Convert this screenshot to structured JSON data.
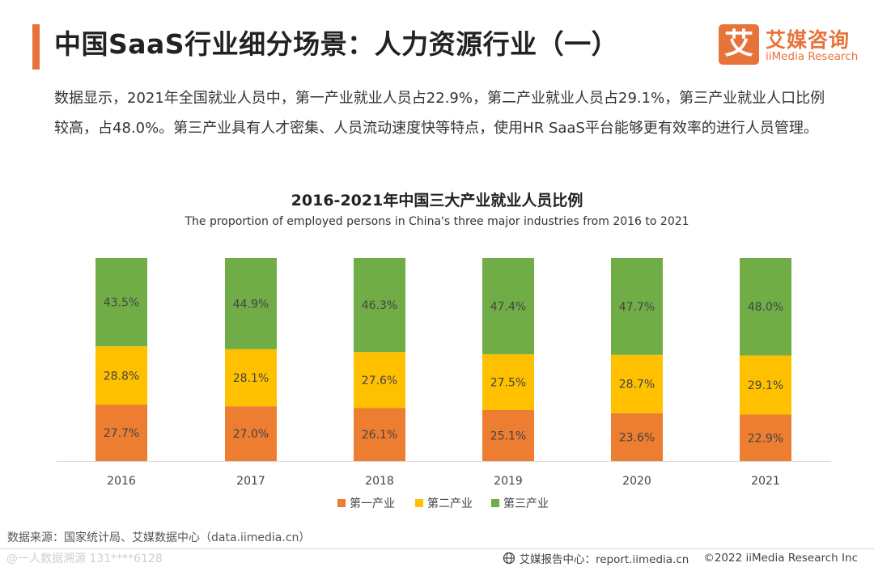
{
  "header": {
    "title": "中国SaaS行业细分场景：人力资源行业（一）",
    "logo": {
      "mark": "艾",
      "name_cn": "艾媒咨询",
      "name_en": "iiMedia Research"
    }
  },
  "intro": "数据显示，2021年全国就业人员中，第一产业就业人员占22.9%，第二产业就业人员占29.1%，第三产业就业人口比例较高，占48.0%。第三产业具有人才密集、人员流动速度快等特点，使用HR SaaS平台能够更有效率的进行人员管理。",
  "chart_data": {
    "type": "bar",
    "stacked": true,
    "title": "2016-2021年中国三大产业就业人员比例",
    "subtitle": "The proportion of employed persons in China's three major industries from 2016 to 2021",
    "categories": [
      "2016",
      "2017",
      "2018",
      "2019",
      "2020",
      "2021"
    ],
    "series": [
      {
        "name": "第一产业",
        "color": "#ED7D31",
        "values": [
          27.7,
          27.0,
          26.1,
          25.1,
          23.6,
          22.9
        ],
        "labels": [
          "27.7%",
          "27.0%",
          "26.1%",
          "25.1%",
          "23.6%",
          "22.9%"
        ]
      },
      {
        "name": "第二产业",
        "color": "#FFC000",
        "values": [
          28.8,
          28.1,
          27.6,
          27.5,
          28.7,
          29.1
        ],
        "labels": [
          "28.8%",
          "28.1%",
          "27.6%",
          "27.5%",
          "28.7%",
          "29.1%"
        ]
      },
      {
        "name": "第三产业",
        "color": "#70AD47",
        "values": [
          43.5,
          44.9,
          46.3,
          47.4,
          47.7,
          48.0
        ],
        "labels": [
          "43.5%",
          "44.9%",
          "46.3%",
          "47.4%",
          "47.7%",
          "48.0%"
        ]
      }
    ],
    "ylim": [
      0,
      100
    ],
    "grid": false,
    "legend": "bottom"
  },
  "footer": {
    "source": "数据来源：国家统计局、艾媒数据中心（data.iimedia.cn）",
    "watermark": "@一人数据溯源 131****6128",
    "report_center": "艾媒报告中心：report.iimedia.cn",
    "copyright": "©2022 iiMedia Research Inc"
  }
}
